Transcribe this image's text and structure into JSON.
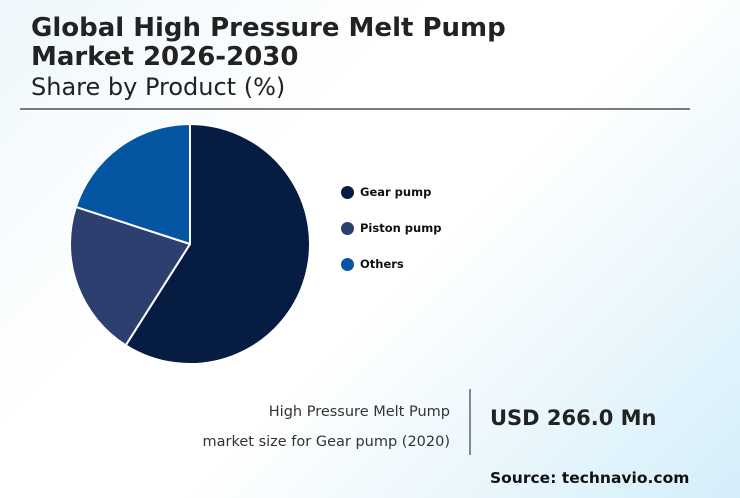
{
  "header": {
    "title_line1": "Global High Pressure Melt Pump",
    "title_line2": "Market 2026-2030",
    "subtitle": "Share by Product (%)"
  },
  "chart_data": {
    "type": "pie",
    "title": "Global High Pressure Melt Pump Market 2026-2030",
    "subtitle": "Share by Product (%)",
    "categories": [
      "Gear pump",
      "Piston pump",
      "Others"
    ],
    "values": [
      59,
      21,
      20
    ],
    "colors": [
      "#071c42",
      "#2c3f6e",
      "#0456a3"
    ],
    "start_angle_deg": 0,
    "direction": "clockwise",
    "legend_position": "right"
  },
  "legend": {
    "items": [
      {
        "label": "Gear pump",
        "color": "#071c42"
      },
      {
        "label": "Piston pump",
        "color": "#2c3f6e"
      },
      {
        "label": "Others",
        "color": "#0456a3"
      }
    ]
  },
  "footer": {
    "caption_line1": "High Pressure Melt Pump",
    "caption_line2": "market size for Gear pump (2020)",
    "value": "USD 266.0 Mn",
    "source": "Source: technavio.com"
  }
}
